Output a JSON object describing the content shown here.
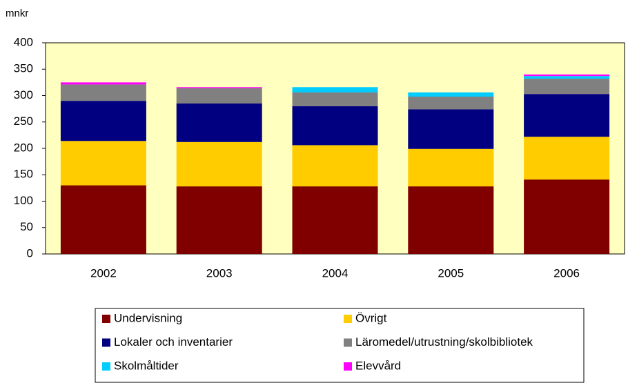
{
  "chart_data": {
    "type": "stacked_bar",
    "y_axis_label": "mnkr",
    "categories": [
      "2002",
      "2003",
      "2004",
      "2005",
      "2006"
    ],
    "series": [
      {
        "name": "Undervisning",
        "color": "#800000",
        "values": [
          130,
          128,
          128,
          128,
          141
        ]
      },
      {
        "name": "Övrigt",
        "color": "#ffcc00",
        "values": [
          84,
          84,
          78,
          71,
          81
        ]
      },
      {
        "name": "Lokaler och inventarier",
        "color": "#000080",
        "values": [
          76,
          73,
          74,
          75,
          81
        ]
      },
      {
        "name": "Läromedel/utrustning/skolbibliotek",
        "color": "#808080",
        "values": [
          31,
          29,
          26,
          24,
          29
        ]
      },
      {
        "name": "Skolmåltider",
        "color": "#00ccff",
        "values": [
          0,
          0,
          10,
          8,
          5
        ]
      },
      {
        "name": "Elevvård",
        "color": "#ff00ff",
        "values": [
          4,
          2,
          0,
          0,
          3
        ]
      }
    ],
    "ylim": [
      0,
      400
    ],
    "yticks": [
      0,
      50,
      100,
      150,
      200,
      250,
      300,
      350,
      400
    ],
    "grid": false,
    "plot_background": "#ffffc0",
    "legend_position": "bottom"
  }
}
